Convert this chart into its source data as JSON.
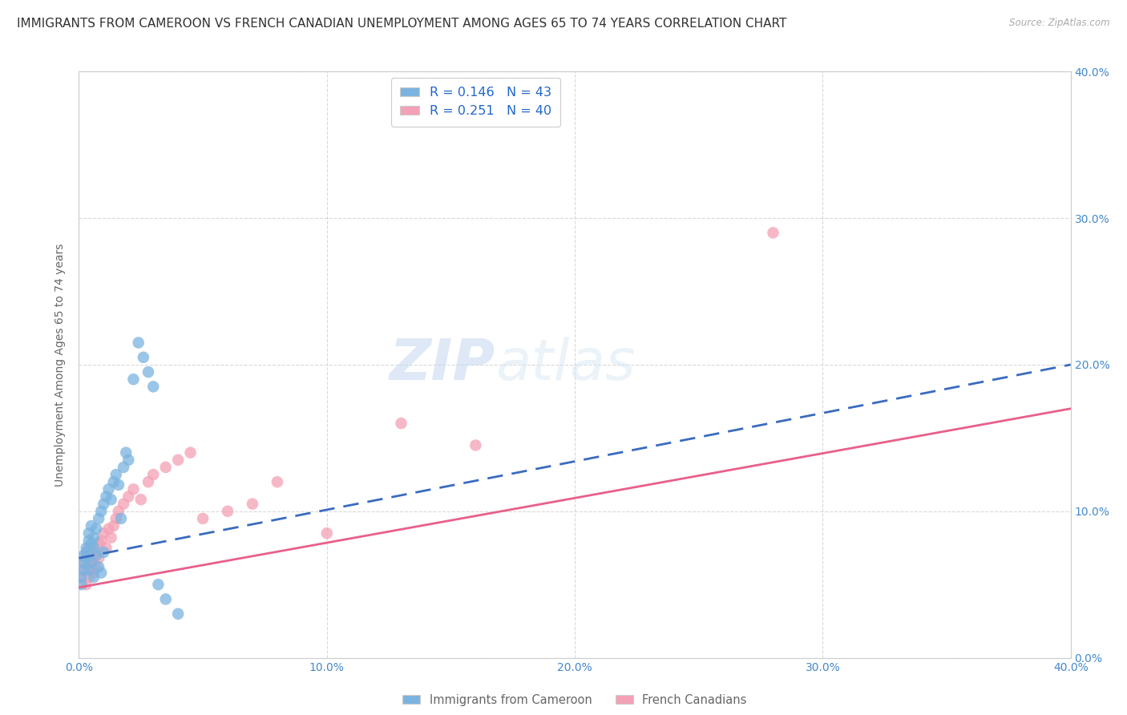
{
  "title": "IMMIGRANTS FROM CAMEROON VS FRENCH CANADIAN UNEMPLOYMENT AMONG AGES 65 TO 74 YEARS CORRELATION CHART",
  "source": "Source: ZipAtlas.com",
  "ylabel": "Unemployment Among Ages 65 to 74 years",
  "xlim": [
    0.0,
    0.4
  ],
  "ylim": [
    0.0,
    0.4
  ],
  "xticks": [
    0.0,
    0.1,
    0.2,
    0.3,
    0.4
  ],
  "yticks": [
    0.0,
    0.1,
    0.2,
    0.3,
    0.4
  ],
  "xticklabels": [
    "0.0%",
    "10.0%",
    "20.0%",
    "30.0%",
    "40.0%"
  ],
  "right_yticklabels": [
    "0.0%",
    "10.0%",
    "20.0%",
    "30.0%",
    "40.0%"
  ],
  "cameroon_color": "#7ab3e0",
  "french_color": "#f4a0b5",
  "cameroon_line_color": "#3a6bbf",
  "french_line_color": "#e8608a",
  "legend1": "R = 0.146   N = 43",
  "legend2": "R = 0.251   N = 40",
  "legend_label1": "Immigrants from Cameroon",
  "legend_label2": "French Canadians",
  "watermark_zip": "ZIP",
  "watermark_atlas": "atlas",
  "cameroon_x": [
    0.001,
    0.001,
    0.002,
    0.002,
    0.002,
    0.003,
    0.003,
    0.003,
    0.004,
    0.004,
    0.004,
    0.005,
    0.005,
    0.005,
    0.006,
    0.006,
    0.006,
    0.007,
    0.007,
    0.008,
    0.008,
    0.009,
    0.009,
    0.01,
    0.01,
    0.011,
    0.012,
    0.013,
    0.014,
    0.015,
    0.016,
    0.017,
    0.018,
    0.019,
    0.02,
    0.022,
    0.024,
    0.026,
    0.028,
    0.03,
    0.032,
    0.035,
    0.04
  ],
  "cameroon_y": [
    0.05,
    0.055,
    0.06,
    0.065,
    0.07,
    0.075,
    0.068,
    0.072,
    0.08,
    0.06,
    0.085,
    0.078,
    0.065,
    0.09,
    0.082,
    0.055,
    0.075,
    0.088,
    0.07,
    0.095,
    0.062,
    0.1,
    0.058,
    0.105,
    0.072,
    0.11,
    0.115,
    0.108,
    0.12,
    0.125,
    0.118,
    0.095,
    0.13,
    0.14,
    0.135,
    0.19,
    0.215,
    0.205,
    0.195,
    0.185,
    0.05,
    0.04,
    0.03
  ],
  "french_x": [
    0.001,
    0.002,
    0.002,
    0.003,
    0.003,
    0.004,
    0.004,
    0.005,
    0.005,
    0.006,
    0.006,
    0.007,
    0.007,
    0.008,
    0.008,
    0.009,
    0.01,
    0.011,
    0.012,
    0.013,
    0.014,
    0.015,
    0.016,
    0.018,
    0.02,
    0.022,
    0.025,
    0.028,
    0.03,
    0.035,
    0.04,
    0.045,
    0.05,
    0.06,
    0.07,
    0.08,
    0.1,
    0.13,
    0.16,
    0.28
  ],
  "french_y": [
    0.055,
    0.06,
    0.065,
    0.05,
    0.07,
    0.055,
    0.075,
    0.06,
    0.068,
    0.065,
    0.058,
    0.072,
    0.062,
    0.078,
    0.068,
    0.08,
    0.085,
    0.075,
    0.088,
    0.082,
    0.09,
    0.095,
    0.1,
    0.105,
    0.11,
    0.115,
    0.108,
    0.12,
    0.125,
    0.13,
    0.135,
    0.14,
    0.095,
    0.1,
    0.105,
    0.12,
    0.085,
    0.16,
    0.145,
    0.29
  ],
  "background_color": "#ffffff",
  "grid_color": "#d0d0d0",
  "tick_color": "#4488cc",
  "title_color": "#333333",
  "title_fontsize": 11,
  "label_fontsize": 10,
  "tick_fontsize": 10
}
